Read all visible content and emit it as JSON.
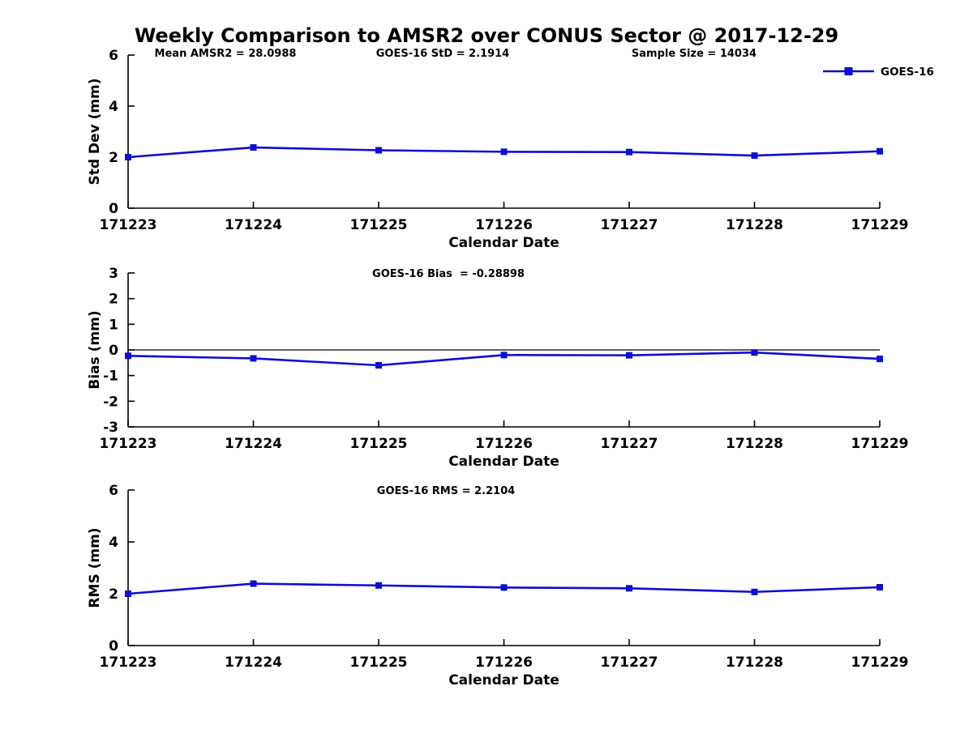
{
  "title": "Weekly Comparison to AMSR2 over CONUS Sector @ 2017-12-29",
  "colors": {
    "series": "#0d0dd6",
    "axis": "#000000",
    "background": "#ffffff"
  },
  "legend": {
    "label": "GOES-16",
    "position": "top-right",
    "marker": "square-icon"
  },
  "chart_data": [
    {
      "type": "line",
      "name": "std-dev-panel",
      "ylabel": "Std Dev (mm)",
      "xlabel": "Calendar Date",
      "ylim": [
        0,
        6
      ],
      "yticks": [
        0,
        2,
        4,
        6
      ],
      "categories": [
        "171223",
        "171224",
        "171225",
        "171226",
        "171227",
        "171228",
        "171229"
      ],
      "series": [
        {
          "name": "GOES-16",
          "values": [
            2.0,
            2.38,
            2.27,
            2.21,
            2.2,
            2.06,
            2.23
          ]
        }
      ],
      "annotations": [
        "Mean AMSR2 = 28.0988",
        "GOES-16 StD = 2.1914",
        "Sample Size = 14034"
      ],
      "show_legend": true,
      "zero_line": false,
      "grid": false,
      "legend_position": "top-right"
    },
    {
      "type": "line",
      "name": "bias-panel",
      "ylabel": "Bias (mm)",
      "xlabel": "Calendar Date",
      "ylim": [
        -3,
        3
      ],
      "yticks": [
        -3,
        -2,
        -1,
        0,
        1,
        2,
        3
      ],
      "categories": [
        "171223",
        "171224",
        "171225",
        "171226",
        "171227",
        "171228",
        "171229"
      ],
      "series": [
        {
          "name": "GOES-16",
          "values": [
            -0.23,
            -0.33,
            -0.6,
            -0.2,
            -0.21,
            -0.1,
            -0.35
          ]
        }
      ],
      "annotations": [
        "GOES-16 Bias  = -0.28898"
      ],
      "show_legend": false,
      "zero_line": true,
      "grid": false
    },
    {
      "type": "line",
      "name": "rms-panel",
      "ylabel": "RMS (mm)",
      "xlabel": "Calendar Date",
      "ylim": [
        0,
        6
      ],
      "yticks": [
        0,
        2,
        4,
        6
      ],
      "categories": [
        "171223",
        "171224",
        "171225",
        "171226",
        "171227",
        "171228",
        "171229"
      ],
      "series": [
        {
          "name": "GOES-16",
          "values": [
            2.0,
            2.39,
            2.32,
            2.24,
            2.21,
            2.07,
            2.25
          ]
        }
      ],
      "annotations": [
        "GOES-16 RMS = 2.2104"
      ],
      "show_legend": false,
      "zero_line": false,
      "grid": false
    }
  ]
}
